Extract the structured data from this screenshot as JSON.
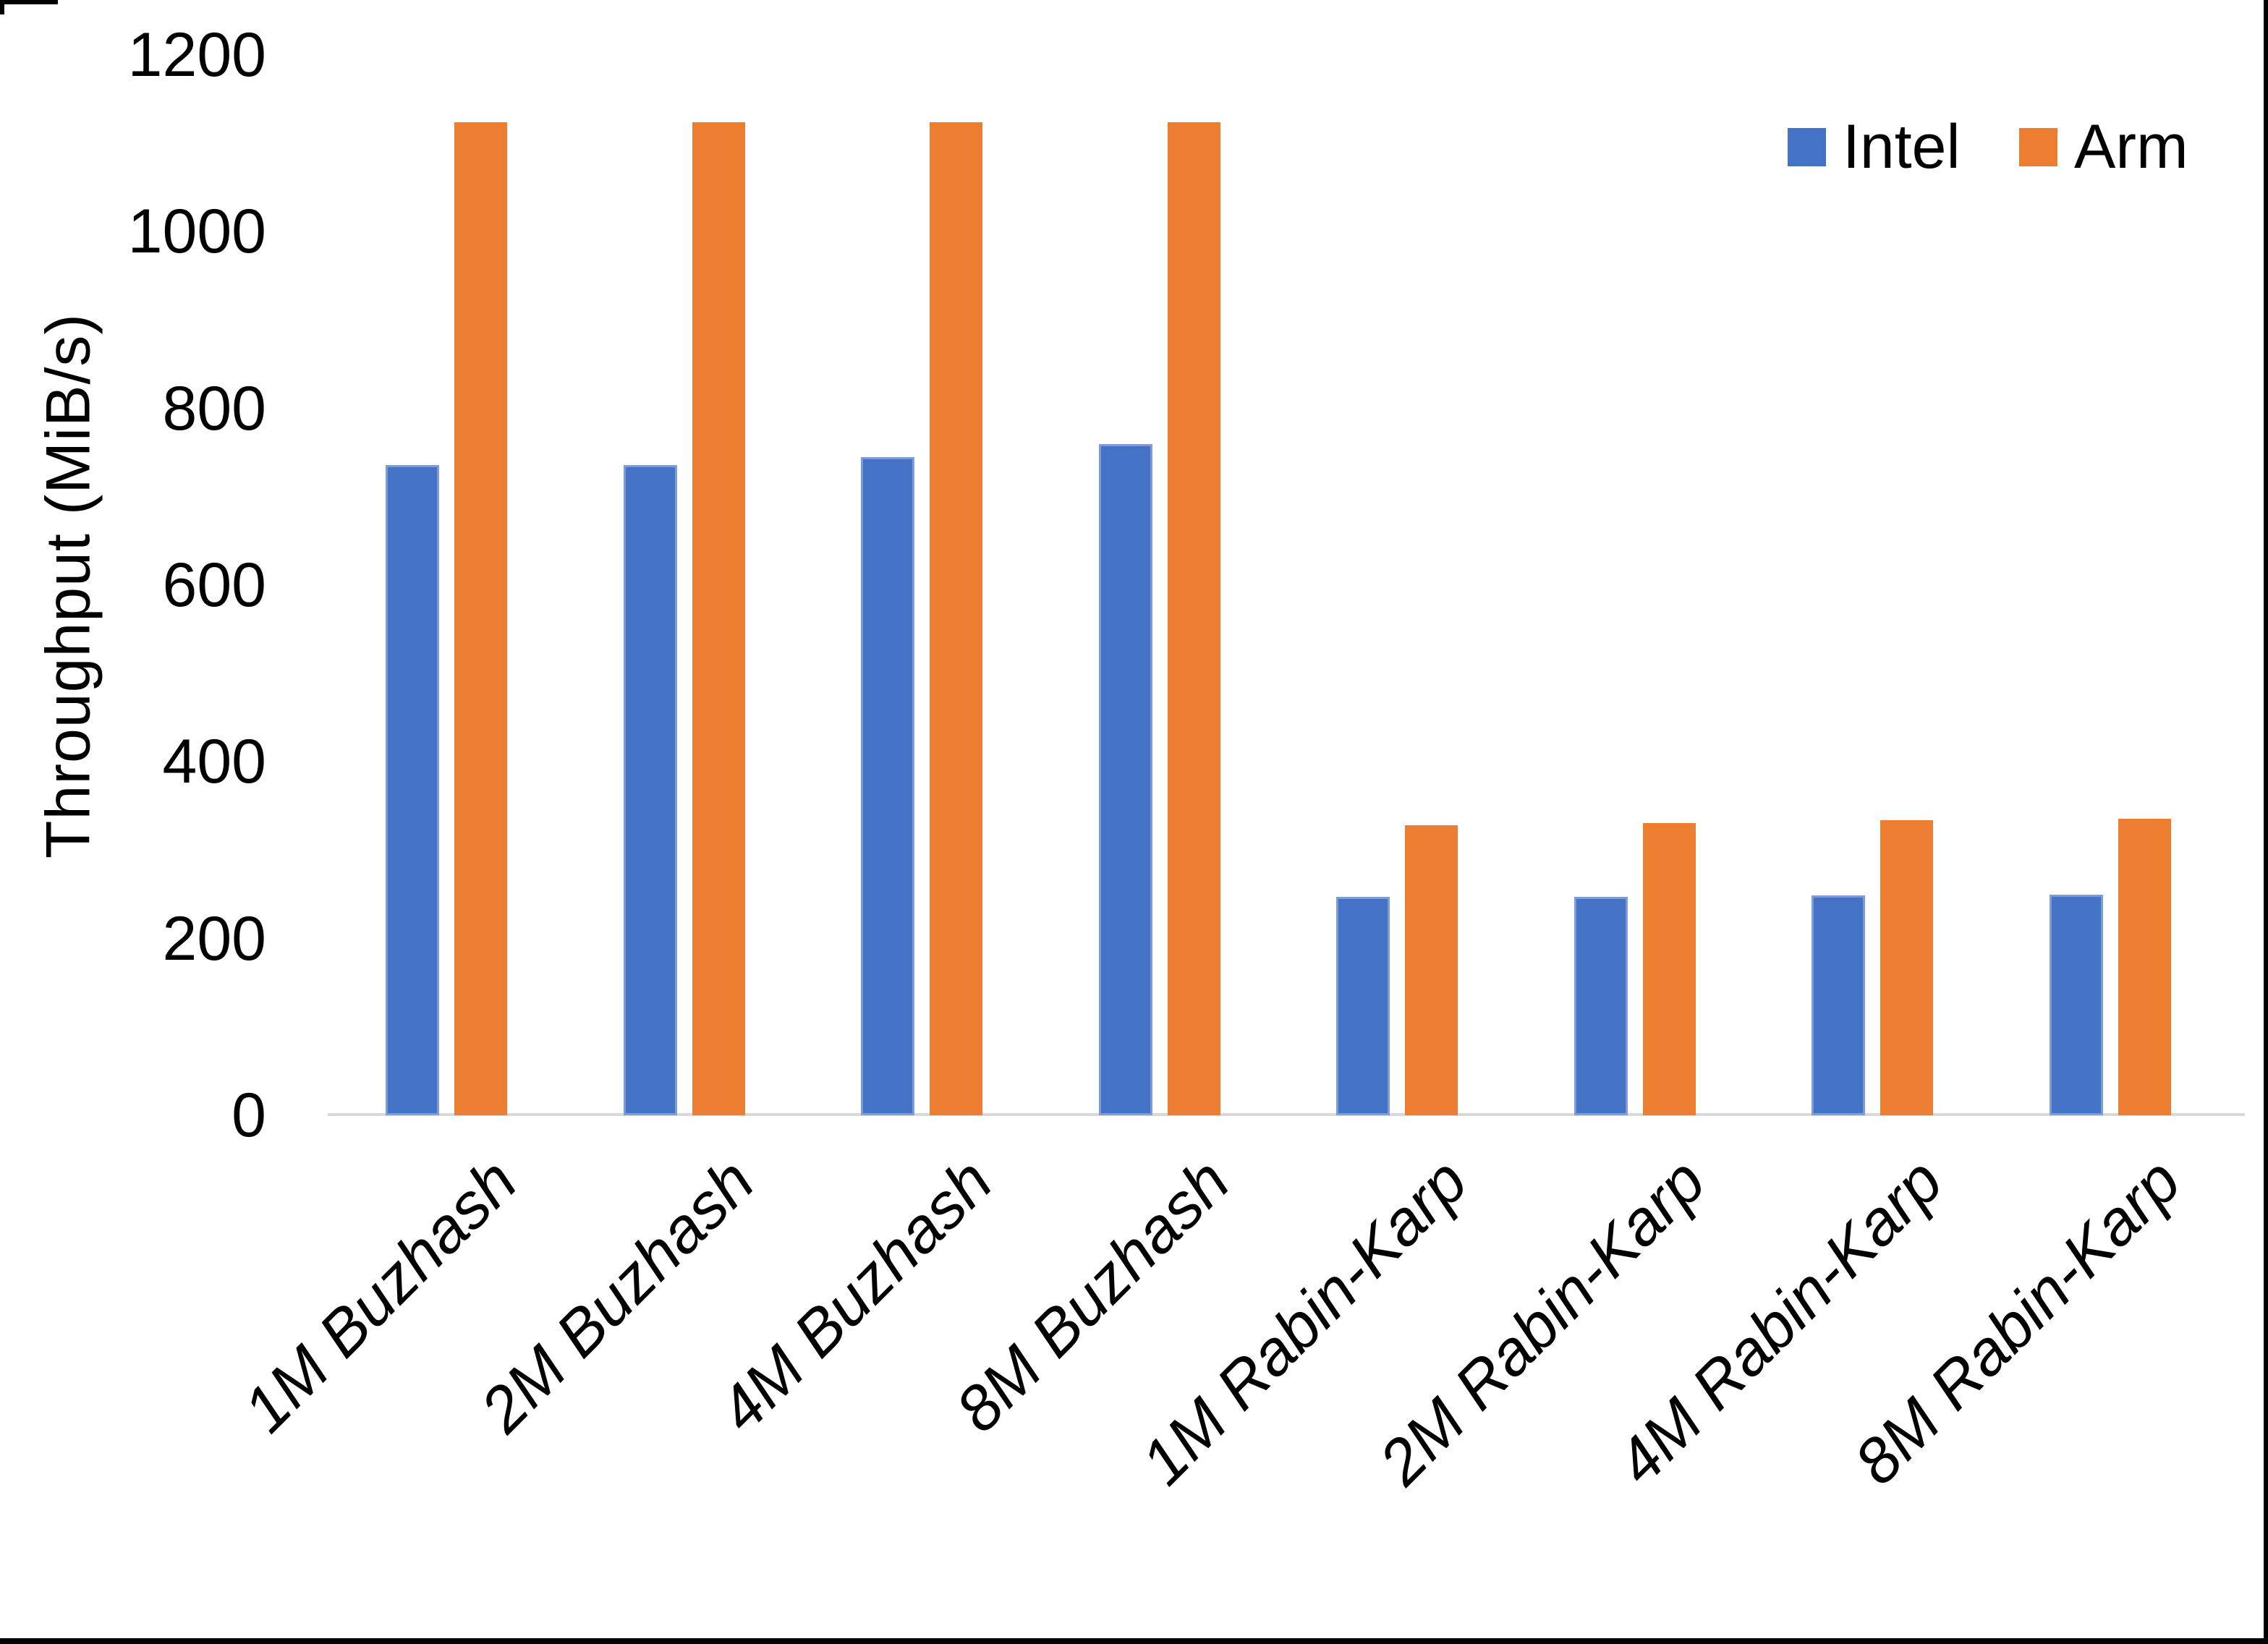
{
  "chart_data": {
    "type": "bar",
    "title": "",
    "categories": [
      "1M Buzhash",
      "2M Buzhash",
      "4M Buzhash",
      "8M Buzhash",
      "1M Rabin-Karp",
      "2M Rabin-Karp",
      "4M Rabin-Karp",
      "8M Rabin-Karp"
    ],
    "series": [
      {
        "name": "Intel",
        "color": "#4472C4",
        "values": [
          736,
          736,
          745,
          760,
          247,
          247,
          249,
          250
        ]
      },
      {
        "name": "Arm",
        "color": "#ED7D31",
        "values": [
          1124,
          1124,
          1124,
          1124,
          328,
          331,
          334,
          336
        ]
      }
    ],
    "xlabel": "",
    "ylabel": "Throughput (MiB/s)",
    "ylim": [
      0,
      1200
    ],
    "yticks": [
      0,
      200,
      400,
      600,
      800,
      1000,
      1200
    ],
    "grid": false,
    "legend_position": "top-right",
    "axis_line_color": "#d9d9d9",
    "text_color": "#000000"
  }
}
